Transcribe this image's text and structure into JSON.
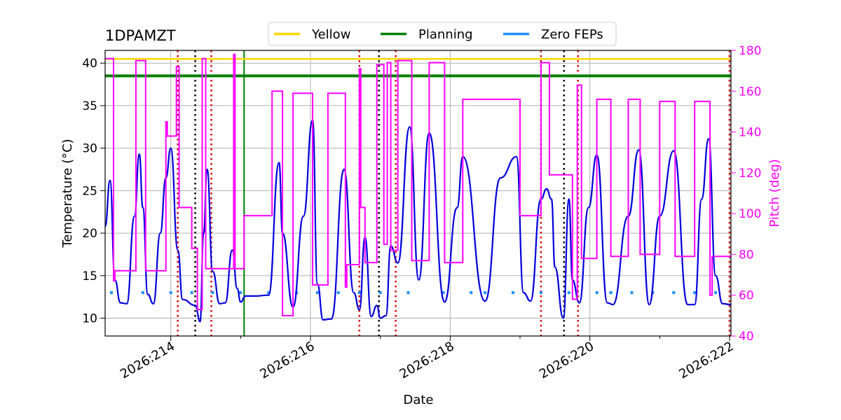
{
  "chart_data": {
    "type": "line",
    "title": "1DPAMZT",
    "xlabel": "Date",
    "ylabel_left": "Temperature ($^\\circ$C)",
    "ylabel_left_display": "Temperature (°C)",
    "ylabel_right": "Pitch (deg)",
    "xlim": [
      213.06,
      222.02
    ],
    "ylim_left": [
      7.9,
      41.5
    ],
    "ylim_right": [
      40,
      180
    ],
    "x_ticks": [
      {
        "value": 214,
        "label": "2026:214"
      },
      {
        "value": 216,
        "label": "2026:216"
      },
      {
        "value": 218,
        "label": "2026:218"
      },
      {
        "value": 220,
        "label": "2026:220"
      },
      {
        "value": 222,
        "label": "2026:222"
      }
    ],
    "x_minor_ticks": [
      215,
      217,
      219,
      221
    ],
    "y_left_ticks": [
      10,
      15,
      20,
      25,
      30,
      35,
      40
    ],
    "y_right_ticks": [
      40,
      60,
      80,
      100,
      120,
      140,
      160,
      180
    ],
    "grid": true,
    "legend": {
      "placement": "top-center",
      "entries": [
        {
          "label": "Yellow",
          "color": "#ffd700"
        },
        {
          "label": "Planning",
          "color": "#008000"
        },
        {
          "label": "Zero FEPs",
          "color": "#1e90ff"
        }
      ]
    },
    "colors": {
      "temperature": "#0000dd",
      "pitch": "#ff00ff",
      "yellow": "#ffd700",
      "planning": "#008000",
      "zero_feps": "#1e90ff",
      "red_marker": "#dd0000",
      "black_marker": "#000000",
      "grid": "#b0b0b0",
      "right_axis": "#ff00ff"
    },
    "series": [
      {
        "name": "Yellow",
        "axis": "left",
        "style": "hline",
        "value": 40.5
      },
      {
        "name": "Planning",
        "axis": "left",
        "style": "hline",
        "value": 38.5
      },
      {
        "name": "Zero FEPs",
        "axis": "left",
        "style": "dotted",
        "x": [
          213.15,
          213.6,
          214.0,
          214.3,
          214.6,
          215.0,
          215.4,
          215.8,
          216.1,
          216.4,
          216.7,
          217.0,
          217.4,
          217.9,
          218.3,
          218.5,
          218.9,
          219.3,
          219.7,
          220.1,
          220.3,
          220.6,
          220.9,
          221.2,
          221.5,
          221.8
        ],
        "y": [
          13,
          13,
          13,
          13,
          13,
          13,
          13,
          13,
          13,
          13,
          13,
          13,
          13,
          13,
          13,
          13,
          13,
          13,
          13,
          13,
          13,
          13,
          13,
          13,
          13,
          13
        ]
      },
      {
        "name": "",
        "axis": "left",
        "style": "solid",
        "role": "temperature",
        "x": [
          213.06,
          213.13,
          213.2,
          213.28,
          213.37,
          213.48,
          213.55,
          213.6,
          213.67,
          213.75,
          213.85,
          213.93,
          214.0,
          214.1,
          214.17,
          214.35,
          214.42,
          214.47,
          214.52,
          214.6,
          214.7,
          214.78,
          214.88,
          214.95,
          215.0,
          215.07,
          215.2,
          215.4,
          215.55,
          215.6,
          215.75,
          215.9,
          216.03,
          216.1,
          216.18,
          216.3,
          216.48,
          216.62,
          216.7,
          216.78,
          216.87,
          216.95,
          217.0,
          217.08,
          217.15,
          217.25,
          217.42,
          217.55,
          217.7,
          217.92,
          218.1,
          218.18,
          218.5,
          218.72,
          218.95,
          219.05,
          219.15,
          219.3,
          219.38,
          219.45,
          219.5,
          219.62,
          219.7,
          219.75,
          219.85,
          219.98,
          220.1,
          220.25,
          220.33,
          220.55,
          220.7,
          220.85,
          221.0,
          221.2,
          221.4,
          221.5,
          221.6,
          221.7,
          221.8,
          221.9,
          222.02
        ],
        "y": [
          20.8,
          26.2,
          14.5,
          11.8,
          11.7,
          22.0,
          29.3,
          23.0,
          12.8,
          11.7,
          20.0,
          26.5,
          30.0,
          18.0,
          12.2,
          11.5,
          9.6,
          20.0,
          27.5,
          15.5,
          11.7,
          11.8,
          18.0,
          13.5,
          11.9,
          12.6,
          12.6,
          12.7,
          28.3,
          20.0,
          11.3,
          22.0,
          33.3,
          14.0,
          9.8,
          9.9,
          27.5,
          13.0,
          11.0,
          19.5,
          10.2,
          11.5,
          10.0,
          10.3,
          18.5,
          16.5,
          32.5,
          14.5,
          31.8,
          11.9,
          23.0,
          29.0,
          12.0,
          26.5,
          29.0,
          13.0,
          12.0,
          24.0,
          25.2,
          24.0,
          16.0,
          10.0,
          24.0,
          14.5,
          11.8,
          23.0,
          29.2,
          11.8,
          11.6,
          22.0,
          29.8,
          11.6,
          22.0,
          29.7,
          11.6,
          11.6,
          24.0,
          31.1,
          15.0,
          11.7,
          11.6
        ]
      },
      {
        "name": "",
        "axis": "right",
        "style": "step",
        "role": "pitch",
        "x": [
          213.06,
          213.18,
          213.2,
          213.22,
          213.5,
          213.64,
          213.67,
          213.93,
          213.95,
          214.08,
          214.12,
          214.3,
          214.38,
          214.45,
          214.5,
          214.6,
          214.9,
          214.92,
          215.05,
          215.45,
          215.6,
          215.75,
          216.03,
          216.25,
          216.5,
          216.52,
          216.7,
          216.72,
          216.78,
          216.95,
          217.05,
          217.1,
          217.15,
          217.25,
          217.45,
          217.7,
          217.92,
          218.18,
          218.72,
          219.0,
          219.3,
          219.42,
          219.75,
          219.82,
          219.88,
          220.1,
          220.3,
          220.55,
          220.72,
          221.0,
          221.22,
          221.5,
          221.72,
          221.75,
          222.02
        ],
        "y": [
          176,
          67,
          72,
          72,
          175,
          72,
          72,
          145,
          138,
          172,
          103,
          83,
          53,
          176,
          73,
          73,
          178,
          73,
          99,
          160,
          50,
          159,
          65,
          159,
          64,
          75,
          171,
          103,
          76,
          173,
          85,
          174,
          82,
          175,
          77,
          174,
          76,
          156,
          156,
          99,
          174,
          119,
          58,
          163,
          78,
          156,
          79,
          156,
          80,
          155,
          79,
          155,
          60,
          79,
          79
        ]
      }
    ],
    "vlines": [
      {
        "x": 214.1,
        "color": "red",
        "style": "dotted"
      },
      {
        "x": 214.35,
        "color": "black",
        "style": "dotted"
      },
      {
        "x": 214.58,
        "color": "red",
        "style": "dotted"
      },
      {
        "x": 215.05,
        "color": "green",
        "style": "solid"
      },
      {
        "x": 216.7,
        "color": "red",
        "style": "dotted"
      },
      {
        "x": 216.98,
        "color": "black",
        "style": "dotted"
      },
      {
        "x": 217.22,
        "color": "red",
        "style": "dotted"
      },
      {
        "x": 219.3,
        "color": "red",
        "style": "dotted"
      },
      {
        "x": 219.63,
        "color": "black",
        "style": "dotted"
      },
      {
        "x": 219.83,
        "color": "red",
        "style": "dotted"
      },
      {
        "x": 222.0,
        "color": "red",
        "style": "dotted"
      }
    ]
  }
}
